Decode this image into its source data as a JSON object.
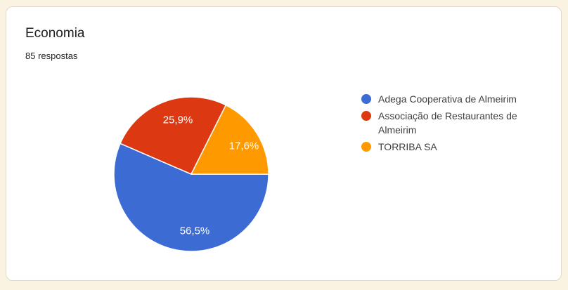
{
  "card": {
    "title": "Economia",
    "subtitle": "85 respostas"
  },
  "colors": {
    "page_background": "#faf3e1",
    "card_background": "#ffffff",
    "card_border": "#dfdacb",
    "title_text": "#202124",
    "legend_text": "#3c4043",
    "slice_label_text": "#ffffff",
    "slice_separator": "#ffffff"
  },
  "chart_data": {
    "type": "pie",
    "title": "Economia",
    "subtitle": "85 respostas",
    "responses_total": 85,
    "categories": [
      "Adega Cooperativa de Almeirim",
      "Associação de Restaurantes de Almeirim",
      "TORRIBA SA"
    ],
    "values_percent": [
      56.5,
      25.9,
      17.6
    ],
    "slice_labels": [
      "56,5%",
      "25,9%",
      "17,6%"
    ],
    "colors": [
      "#3b6bd3",
      "#dc3912",
      "#ff9900"
    ],
    "start_angle": "3-oclock",
    "direction": "clockwise",
    "legend_position": "right"
  },
  "legend": {
    "items": [
      {
        "label": "Adega Cooperativa de Almeirim",
        "color": "#3b6bd3"
      },
      {
        "label": "Associação de Restaurantes de Almeirim",
        "color": "#dc3912"
      },
      {
        "label": "TORRIBA SA",
        "color": "#ff9900"
      }
    ]
  }
}
